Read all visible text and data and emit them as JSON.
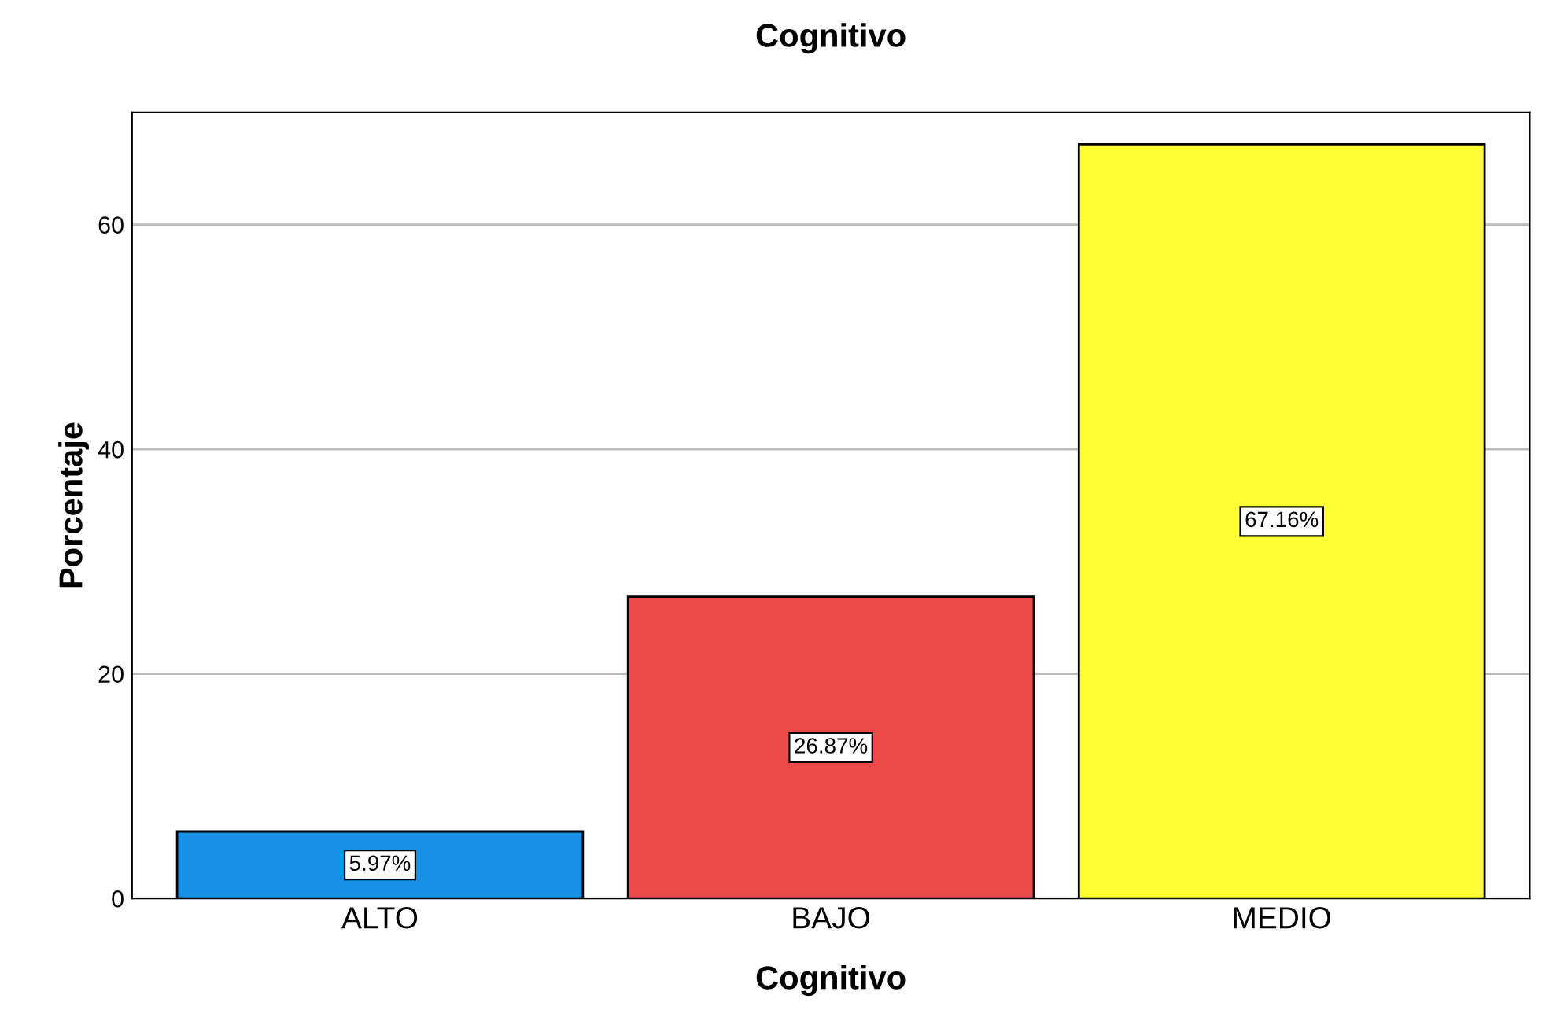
{
  "chart_data": {
    "type": "bar",
    "title": "Cognitivo",
    "xlabel": "Cognitivo",
    "ylabel": "Porcentaje",
    "categories": [
      "ALTO",
      "BAJO",
      "MEDIO"
    ],
    "values": [
      5.97,
      26.87,
      67.16
    ],
    "colors": [
      "#1591e8",
      "#ec4a4a",
      "#ffff33"
    ],
    "value_labels": [
      "5.97%",
      "26.87%",
      "67.16%"
    ],
    "ylim": [
      0,
      70
    ],
    "yticks": [
      0,
      20,
      40,
      60
    ],
    "grid": "y",
    "legend": false
  }
}
